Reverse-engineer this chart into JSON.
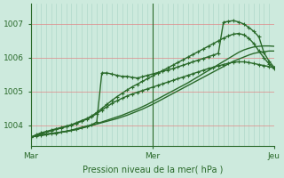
{
  "background_color": "#cdeadd",
  "plot_bg_color": "#cdeadd",
  "grid_h_color": "#e08888",
  "grid_v_color": "#a8d4c4",
  "line_color": "#2a6a2a",
  "xlabel": "Pression niveau de la mer( hPa )",
  "xlabel_color": "#2a6a2a",
  "tick_color": "#2a6a2a",
  "border_color": "#2a6a2a",
  "yticks": [
    1004,
    1005,
    1006,
    1007
  ],
  "ylim": [
    1003.4,
    1007.6
  ],
  "xlim": [
    0,
    48
  ],
  "xtick_positions": [
    0,
    24,
    48
  ],
  "xtick_labels": [
    "Mar",
    "Mer",
    "Jeu"
  ],
  "vline_x": 24,
  "n_vgrid": 48,
  "series": [
    {
      "y": [
        1003.65,
        1003.7,
        1003.72,
        1003.74,
        1003.76,
        1003.78,
        1003.8,
        1003.82,
        1003.85,
        1003.88,
        1003.92,
        1003.96,
        1004.0,
        1004.04,
        1004.08,
        1004.12,
        1004.16,
        1004.2,
        1004.25,
        1004.3,
        1004.36,
        1004.42,
        1004.48,
        1004.55,
        1004.62,
        1004.7,
        1004.78,
        1004.86,
        1004.94,
        1005.02,
        1005.1,
        1005.18,
        1005.26,
        1005.34,
        1005.42,
        1005.5,
        1005.58,
        1005.66,
        1005.74,
        1005.82,
        1005.9,
        1005.96,
        1006.02,
        1006.08,
        1006.13,
        1006.16,
        1006.18,
        1006.2,
        1006.2
      ],
      "lw": 1.0,
      "marker": null
    },
    {
      "y": [
        1003.65,
        1003.7,
        1003.72,
        1003.74,
        1003.76,
        1003.78,
        1003.8,
        1003.82,
        1003.85,
        1003.88,
        1003.92,
        1003.96,
        1004.0,
        1004.05,
        1004.1,
        1004.15,
        1004.2,
        1004.25,
        1004.3,
        1004.36,
        1004.42,
        1004.48,
        1004.55,
        1004.62,
        1004.7,
        1004.78,
        1004.86,
        1004.94,
        1005.02,
        1005.1,
        1005.18,
        1005.26,
        1005.35,
        1005.44,
        1005.53,
        1005.62,
        1005.71,
        1005.8,
        1005.89,
        1005.98,
        1006.07,
        1006.16,
        1006.23,
        1006.28,
        1006.32,
        1006.34,
        1006.35,
        1006.35,
        1006.34
      ],
      "lw": 1.0,
      "marker": null
    },
    {
      "y": [
        1003.65,
        1003.68,
        1003.7,
        1003.72,
        1003.75,
        1003.77,
        1003.8,
        1003.83,
        1003.86,
        1003.9,
        1003.94,
        1003.98,
        1004.02,
        1004.1,
        1005.55,
        1005.55,
        1005.52,
        1005.48,
        1005.45,
        1005.45,
        1005.42,
        1005.4,
        1005.44,
        1005.48,
        1005.52,
        1005.56,
        1005.6,
        1005.64,
        1005.68,
        1005.73,
        1005.78,
        1005.83,
        1005.88,
        1005.93,
        1005.98,
        1006.03,
        1006.08,
        1006.13,
        1007.05,
        1007.08,
        1007.1,
        1007.06,
        1007.0,
        1006.9,
        1006.78,
        1006.62,
        1006.15,
        1005.9,
        1005.72
      ],
      "lw": 1.0,
      "marker": "+"
    },
    {
      "y": [
        1003.65,
        1003.7,
        1003.75,
        1003.8,
        1003.84,
        1003.88,
        1003.92,
        1003.96,
        1004.0,
        1004.06,
        1004.12,
        1004.18,
        1004.25,
        1004.35,
        1004.45,
        1004.55,
        1004.65,
        1004.73,
        1004.8,
        1004.87,
        1004.93,
        1004.98,
        1005.03,
        1005.08,
        1005.13,
        1005.18,
        1005.23,
        1005.28,
        1005.33,
        1005.38,
        1005.43,
        1005.48,
        1005.53,
        1005.58,
        1005.63,
        1005.68,
        1005.72,
        1005.76,
        1005.8,
        1005.84,
        1005.87,
        1005.88,
        1005.88,
        1005.86,
        1005.83,
        1005.8,
        1005.77,
        1005.74,
        1005.7
      ],
      "lw": 1.0,
      "marker": "+"
    },
    {
      "y": [
        1003.65,
        1003.72,
        1003.78,
        1003.82,
        1003.86,
        1003.9,
        1003.94,
        1003.98,
        1004.02,
        1004.08,
        1004.14,
        1004.2,
        1004.28,
        1004.38,
        1004.5,
        1004.62,
        1004.74,
        1004.85,
        1004.95,
        1005.05,
        1005.14,
        1005.22,
        1005.3,
        1005.38,
        1005.46,
        1005.54,
        1005.62,
        1005.7,
        1005.78,
        1005.86,
        1005.94,
        1006.02,
        1006.1,
        1006.18,
        1006.26,
        1006.34,
        1006.42,
        1006.5,
        1006.58,
        1006.65,
        1006.7,
        1006.72,
        1006.68,
        1006.58,
        1006.42,
        1006.2,
        1006.0,
        1005.82,
        1005.68
      ],
      "lw": 1.0,
      "marker": "+"
    }
  ]
}
